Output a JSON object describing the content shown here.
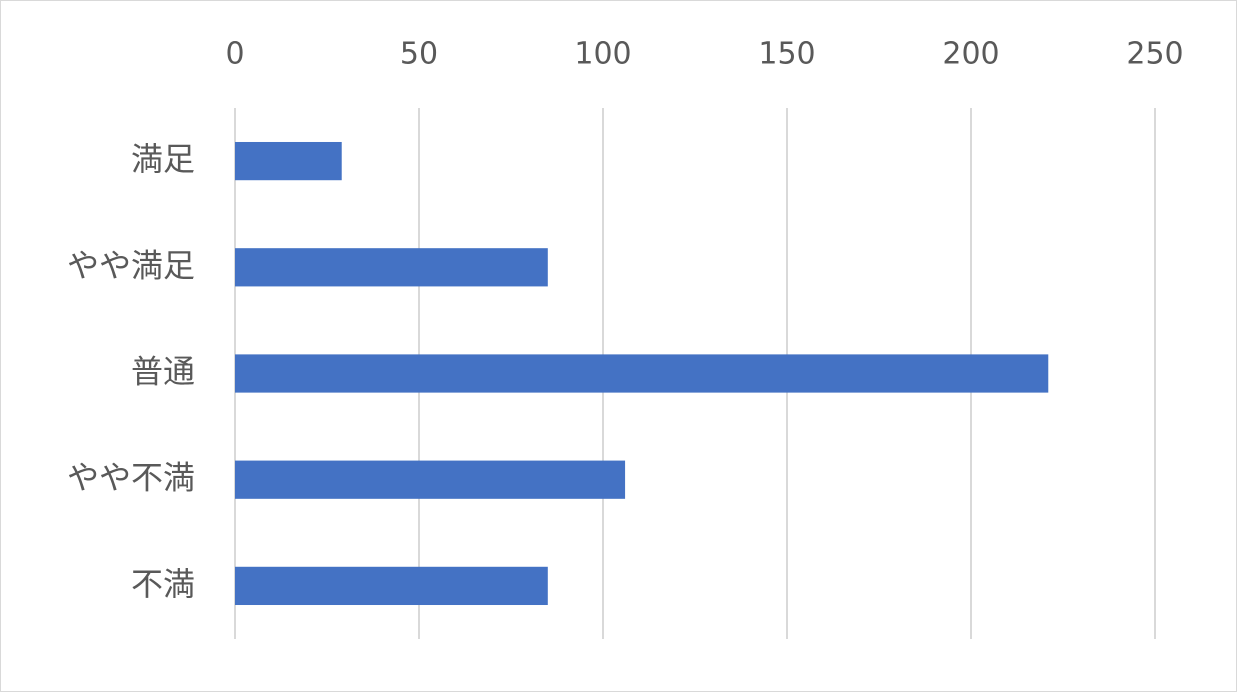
{
  "chart_data": {
    "type": "bar",
    "orientation": "horizontal",
    "categories": [
      "満足",
      "やや満足",
      "普通",
      "やや不満",
      "不満"
    ],
    "values": [
      29,
      85,
      221,
      106,
      85
    ],
    "color": "#4472c4",
    "xlim": [
      0,
      250
    ],
    "xticks": [
      0,
      50,
      100,
      150,
      200,
      250
    ],
    "grid": true
  }
}
